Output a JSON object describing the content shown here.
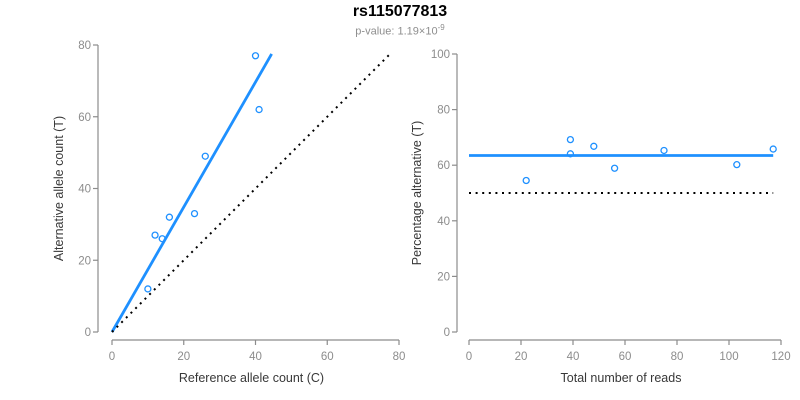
{
  "header": {
    "title": "rs115077813",
    "subtitle_prefix": "p-value: 1.19×10",
    "subtitle_exponent": "-9"
  },
  "colors": {
    "accent_blue": "#1E90FF",
    "dotted_black": "#000000",
    "axis_line": "#8c8c8c",
    "tick_text": "#8c8c8c",
    "axis_label_text": "#383838",
    "title_text": "#000000",
    "subtitle_text": "#8e8e8e",
    "background": "#ffffff"
  },
  "chart_data": [
    {
      "name": "allele-counts",
      "type": "scatter",
      "title": "",
      "xlabel": "Reference allele count (C)",
      "ylabel": "Alternative allele count (T)",
      "xlim": [
        0,
        80
      ],
      "ylim": [
        0,
        80
      ],
      "xticks": [
        0,
        20,
        40,
        60,
        80
      ],
      "yticks": [
        0,
        20,
        40,
        60,
        80
      ],
      "grid": false,
      "legend": "none",
      "marker": {
        "shape": "open-circle",
        "radius": 3,
        "color": "#1E90FF"
      },
      "points": [
        [
          10,
          12
        ],
        [
          12,
          27
        ],
        [
          14,
          26
        ],
        [
          16,
          32
        ],
        [
          23,
          33
        ],
        [
          26,
          49
        ],
        [
          40,
          77
        ],
        [
          41,
          62
        ]
      ],
      "lines": [
        {
          "name": "proportion-fit-line",
          "style": "solid",
          "color": "#1E90FF",
          "width": 2.8,
          "x1": 0,
          "y1": 0,
          "x2": 44.5,
          "y2": 77.5
        },
        {
          "name": "identity-line",
          "style": "dotted",
          "color": "#000000",
          "width": 2,
          "x1": 0,
          "y1": 0,
          "x2": 77.5,
          "y2": 77.5
        }
      ]
    },
    {
      "name": "percentage-vs-coverage",
      "type": "scatter",
      "title": "",
      "xlabel": "Total number of reads",
      "ylabel": "Percentage alternative (T)",
      "xlim": [
        0,
        120
      ],
      "ylim": [
        0,
        100
      ],
      "xticks": [
        0,
        20,
        40,
        60,
        80,
        100,
        120
      ],
      "yticks": [
        0,
        20,
        40,
        60,
        80,
        100
      ],
      "grid": false,
      "legend": "none",
      "marker": {
        "shape": "open-circle",
        "radius": 3,
        "color": "#1E90FF"
      },
      "points": [
        [
          22,
          54.5
        ],
        [
          39,
          69.2
        ],
        [
          39,
          64.1
        ],
        [
          48,
          66.8
        ],
        [
          56,
          58.9
        ],
        [
          75,
          65.3
        ],
        [
          103,
          60.2
        ],
        [
          117,
          65.8
        ]
      ],
      "lines": [
        {
          "name": "mean-percentage-line",
          "style": "solid",
          "color": "#1E90FF",
          "width": 2.8,
          "x1": 0,
          "y1": 63.5,
          "x2": 117,
          "y2": 63.5
        },
        {
          "name": "fifty-percent-line",
          "style": "dotted",
          "color": "#000000",
          "width": 2,
          "x1": 0,
          "y1": 50,
          "x2": 117,
          "y2": 50
        }
      ]
    }
  ]
}
